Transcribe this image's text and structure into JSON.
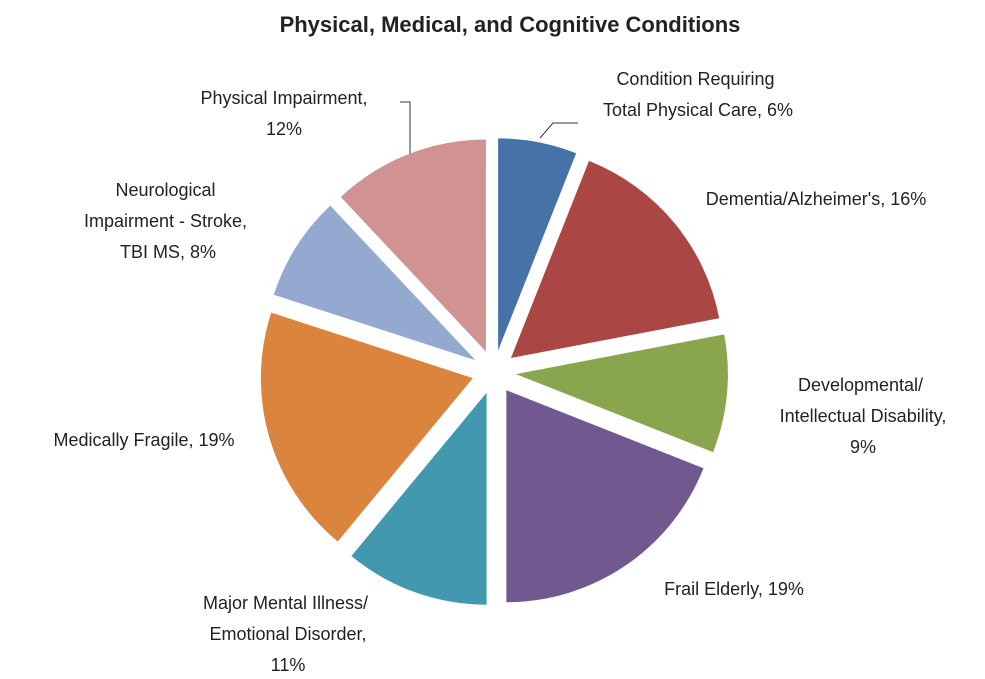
{
  "chart_data": {
    "type": "pie",
    "title": "Physical, Medical, and Cognitive Conditions",
    "categories": [
      "Condition Requiring Total Physical Care,",
      "Dementia/Alzheimer's,",
      "Developmental/ Intellectual Disability,",
      "Frail Elderly,",
      "Major Mental Illness/ Emotional Disorder,",
      "Medically Fragile,",
      "Neurological Impairment - Stroke, TBI MS,",
      "Physical Impairment,"
    ],
    "values": [
      6,
      16,
      9,
      19,
      11,
      19,
      8,
      12
    ],
    "value_labels": [
      "6%",
      "16%",
      "9%",
      "19%",
      "11%",
      "19%",
      "8%",
      "12%"
    ],
    "colors": [
      "#4572a7",
      "#aa4643",
      "#89a54e",
      "#71588f",
      "#4198af",
      "#db843d",
      "#93a9cf",
      "#d19392"
    ]
  }
}
